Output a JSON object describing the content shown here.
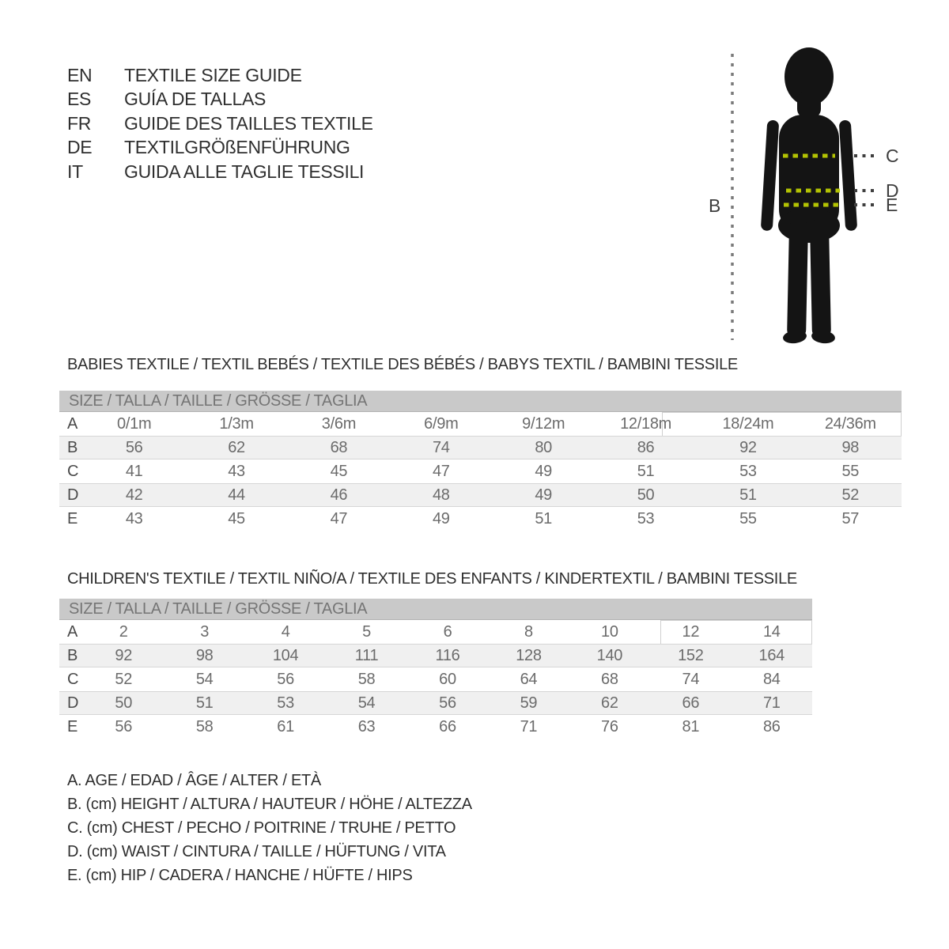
{
  "header": {
    "entries": [
      {
        "code": "EN",
        "title": "TEXTILE SIZE GUIDE"
      },
      {
        "code": "ES",
        "title": "GUÍA DE TALLAS"
      },
      {
        "code": "FR",
        "title": "GUIDE DES TAILLES TEXTILE"
      },
      {
        "code": "DE",
        "title": "TEXTILGRÖßENFÜHRUNG"
      },
      {
        "code": "IT",
        "title": "GUIDA ALLE TAGLIE TESSILI"
      }
    ]
  },
  "figure": {
    "labels": {
      "height": "B",
      "chest": "C",
      "waist": "D",
      "hip": "E"
    },
    "accent_color": "#b3c303",
    "silhouette_color": "#141414"
  },
  "babies": {
    "title": "BABIES TEXTILE / TEXTIL BEBÉS / TEXTILE DES BÉBÉS / BABYS TEXTIL / BAMBINI TESSILE",
    "size_header": "SIZE / TALLA / TAILLE / GRÖSSE / TAGLIA",
    "rows": [
      {
        "label": "A",
        "values": [
          "0/1m",
          "1/3m",
          "3/6m",
          "6/9m",
          "9/12m",
          "12/18m",
          "18/24m",
          "24/36m"
        ]
      },
      {
        "label": "B",
        "values": [
          "56",
          "62",
          "68",
          "74",
          "80",
          "86",
          "92",
          "98"
        ]
      },
      {
        "label": "C",
        "values": [
          "41",
          "43",
          "45",
          "47",
          "49",
          "51",
          "53",
          "55"
        ]
      },
      {
        "label": "D",
        "values": [
          "42",
          "44",
          "46",
          "48",
          "49",
          "50",
          "51",
          "52"
        ]
      },
      {
        "label": "E",
        "values": [
          "43",
          "45",
          "47",
          "49",
          "51",
          "53",
          "55",
          "57"
        ]
      }
    ]
  },
  "children": {
    "title": "CHILDREN'S TEXTILE / TEXTIL NIÑO/A / TEXTILE DES ENFANTS / KINDERTEXTIL / BAMBINI TESSILE",
    "size_header": "SIZE / TALLA / TAILLE / GRÖSSE / TAGLIA",
    "rows": [
      {
        "label": "A",
        "values": [
          "2",
          "3",
          "4",
          "5",
          "6",
          "8",
          "10",
          "12",
          "14"
        ]
      },
      {
        "label": "B",
        "values": [
          "92",
          "98",
          "104",
          "111",
          "116",
          "128",
          "140",
          "152",
          "164"
        ]
      },
      {
        "label": "C",
        "values": [
          "52",
          "54",
          "56",
          "58",
          "60",
          "64",
          "68",
          "74",
          "84"
        ]
      },
      {
        "label": "D",
        "values": [
          "50",
          "51",
          "53",
          "54",
          "56",
          "59",
          "62",
          "66",
          "71"
        ]
      },
      {
        "label": "E",
        "values": [
          "56",
          "58",
          "61",
          "63",
          "66",
          "71",
          "76",
          "81",
          "86"
        ]
      }
    ]
  },
  "legend": {
    "items": [
      "A. AGE / EDAD / ÂGE / ALTER / ETÀ",
      "B. (cm) HEIGHT / ALTURA / HAUTEUR / HÖHE / ALTEZZA",
      "C. (cm) CHEST / PECHO / POITRINE / TRUHE / PETTO",
      "D. (cm) WAIST / CINTURA / TAILLE / HÜFTUNG / VITA",
      "E. (cm) HIP / CADERA / HANCHE / HÜFTE / HIPS"
    ]
  }
}
